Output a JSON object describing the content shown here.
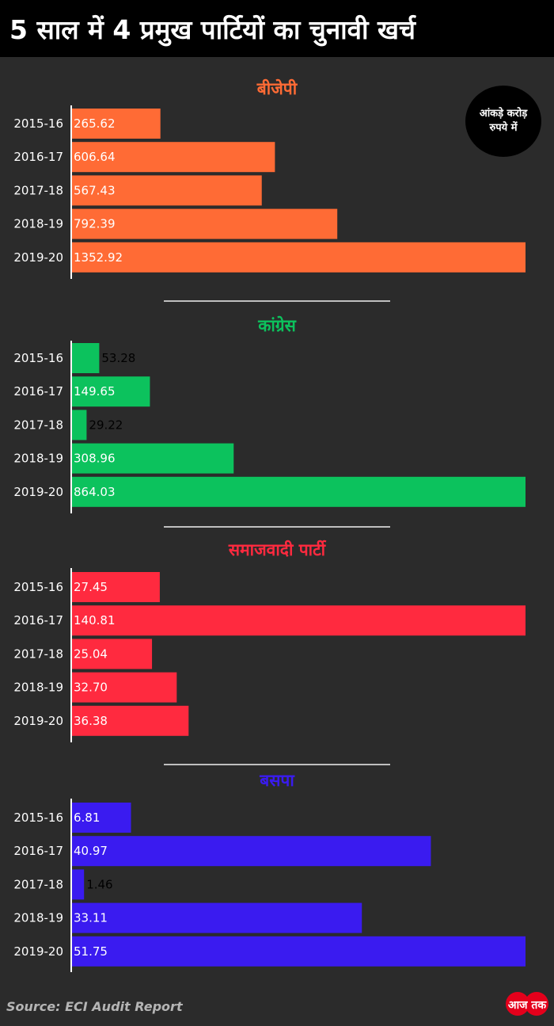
{
  "title": "5 साल में 4 प्रमुख पार्टियों का चुनावी खर्च",
  "unit_note": "आंकड़े करोड़ रुपये में",
  "source": "Source: ECI Audit Report",
  "logo_text": "आज तक",
  "chart_data": [
    {
      "type": "bar",
      "orientation": "horizontal",
      "title": "बीजेपी",
      "color": "#ff6b35",
      "categories": [
        "2015-16",
        "2016-17",
        "2017-18",
        "2018-19",
        "2019-20"
      ],
      "values": [
        265.62,
        606.64,
        567.43,
        792.39,
        1352.92
      ],
      "labels": [
        "265.62",
        "606.64",
        "567.43",
        "792.39",
        "1352.92"
      ]
    },
    {
      "type": "bar",
      "orientation": "horizontal",
      "title": "कांग्रेस",
      "color": "#0cc25d",
      "categories": [
        "2015-16",
        "2016-17",
        "2017-18",
        "2018-19",
        "2019-20"
      ],
      "values": [
        53.28,
        149.65,
        29.22,
        308.96,
        864.03
      ],
      "labels": [
        "53.28",
        "149.65",
        "29.22",
        "308.96",
        "864.03"
      ]
    },
    {
      "type": "bar",
      "orientation": "horizontal",
      "title": "समाजवादी पार्टी",
      "color": "#ff2a3f",
      "categories": [
        "2015-16",
        "2016-17",
        "2017-18",
        "2018-19",
        "2019-20"
      ],
      "values": [
        27.45,
        140.81,
        25.04,
        32.7,
        36.38
      ],
      "labels": [
        "27.45",
        "140.81",
        "25.04",
        "32.70",
        "36.38"
      ]
    },
    {
      "type": "bar",
      "orientation": "horizontal",
      "title": "बसपा",
      "color": "#3a1bf0",
      "categories": [
        "2015-16",
        "2016-17",
        "2017-18",
        "2018-19",
        "2019-20"
      ],
      "values": [
        6.81,
        40.97,
        1.46,
        33.11,
        51.75
      ],
      "labels": [
        "6.81",
        "40.97",
        "1.46",
        "33.11",
        "51.75"
      ]
    }
  ]
}
